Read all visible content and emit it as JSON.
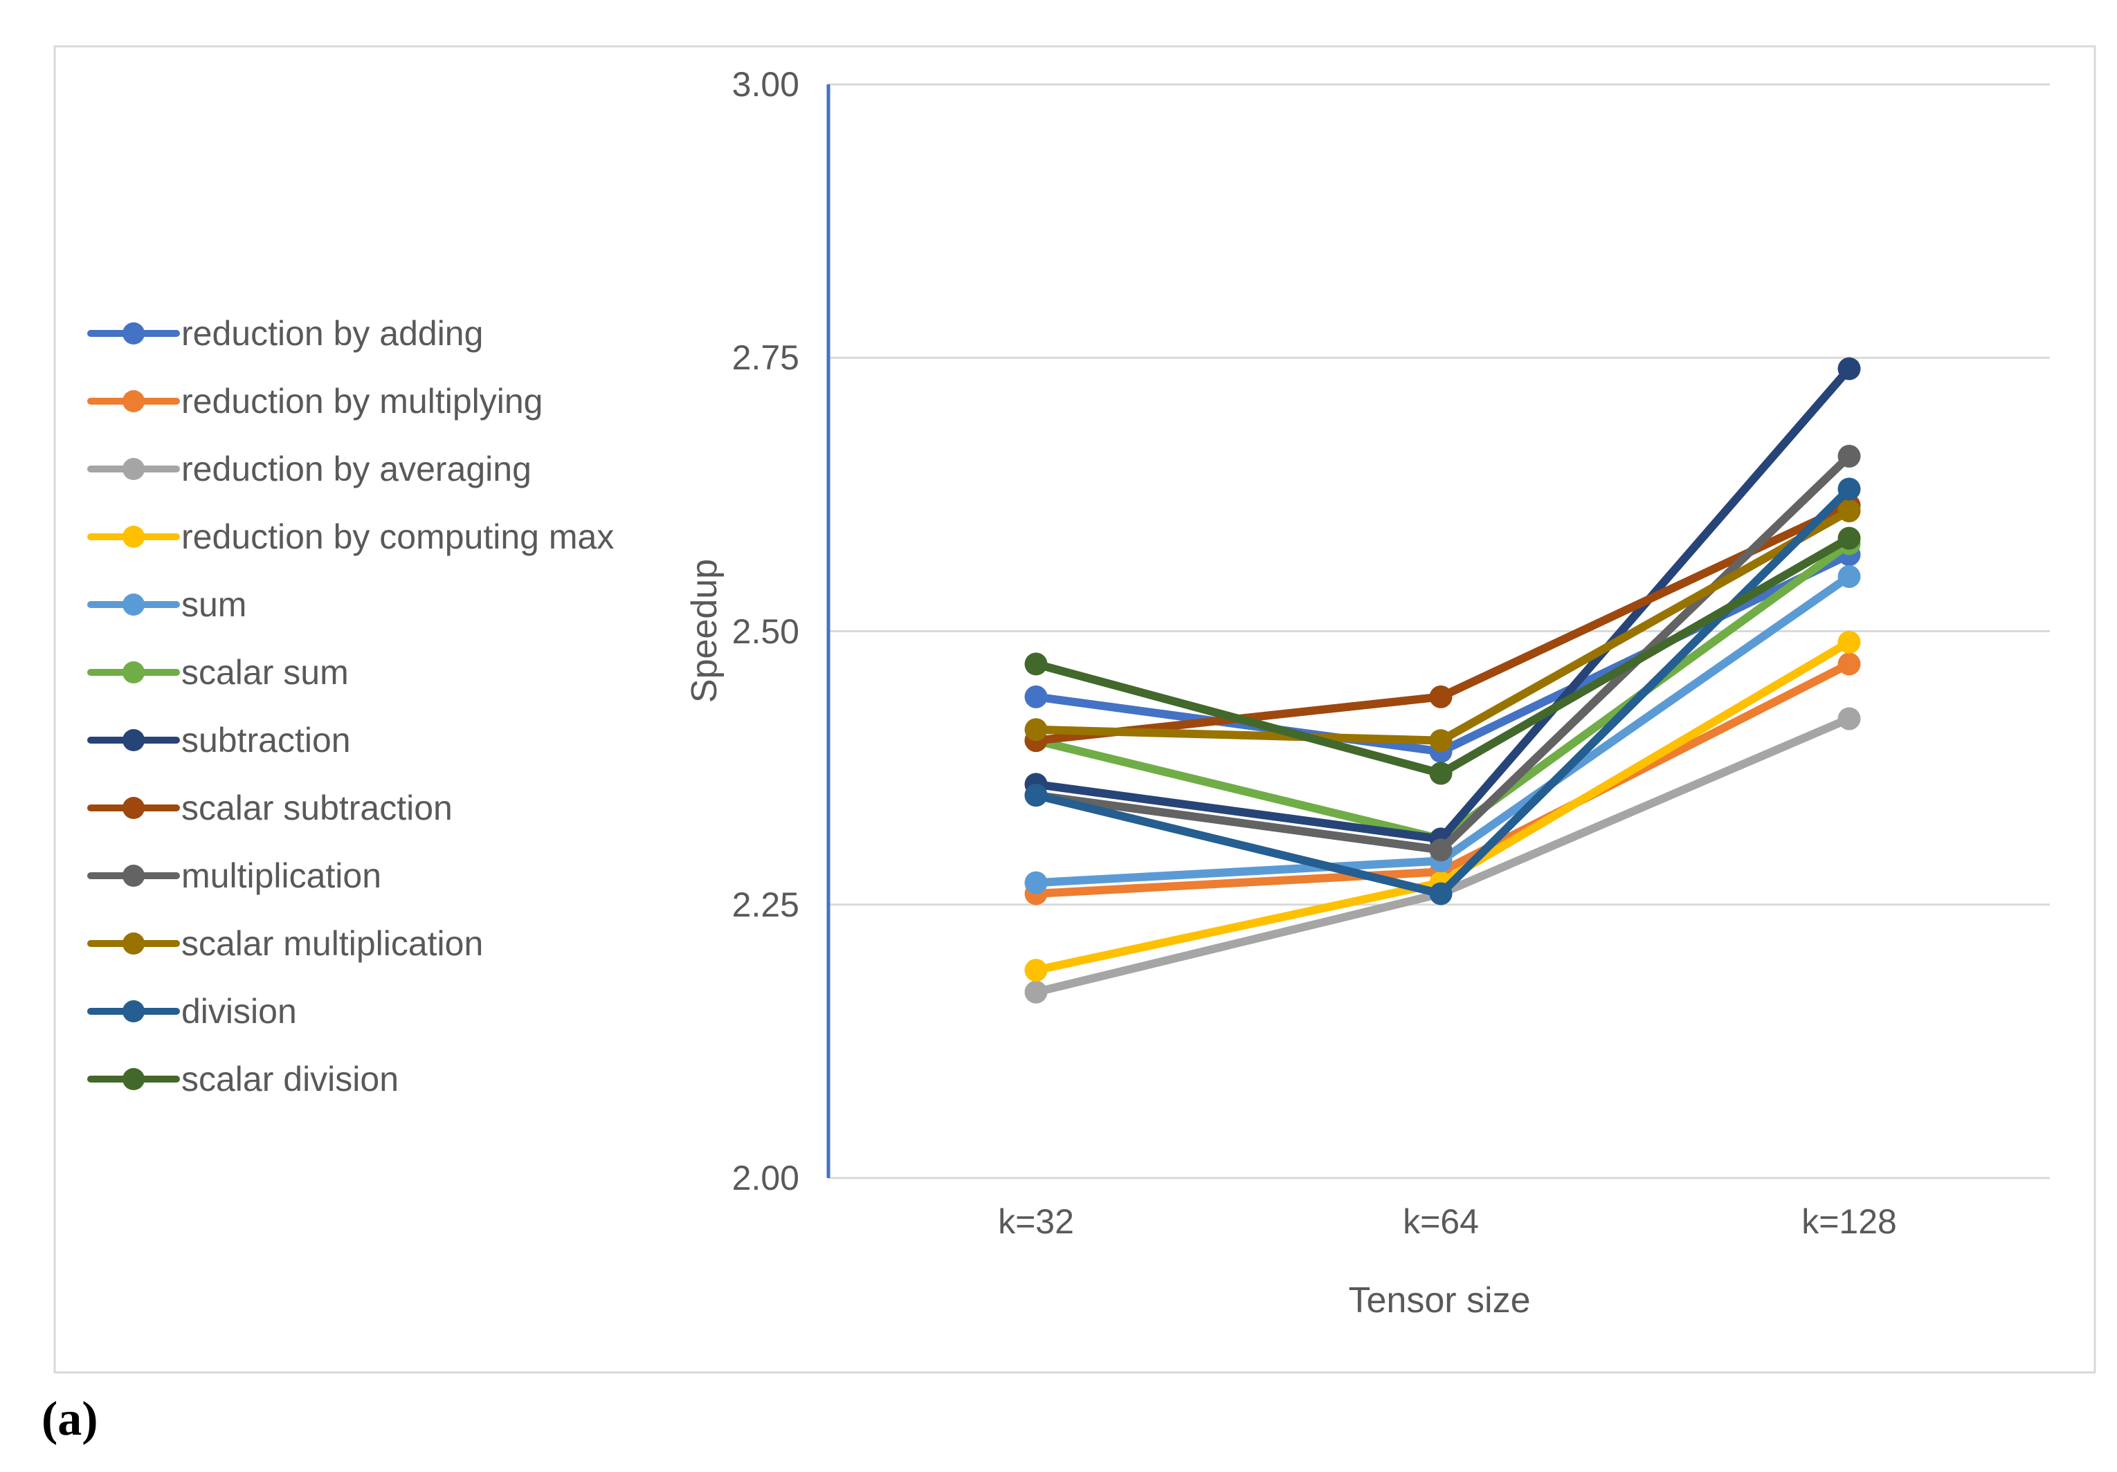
{
  "figure": {
    "caption": "(a)"
  },
  "chart_data": {
    "type": "line",
    "title": "",
    "xlabel": "Tensor size",
    "ylabel": "Speedup",
    "categories": [
      "k=32",
      "k=64",
      "k=128"
    ],
    "y_ticks": [
      "3.00",
      "2.75",
      "2.50",
      "2.25",
      "2.00"
    ],
    "y_tick_values": [
      3.0,
      2.75,
      2.5,
      2.25,
      2.0
    ],
    "ylim": [
      2.0,
      3.0
    ],
    "grid": true,
    "legend_position": "left",
    "axis_color": "#4472C4",
    "gridline_color": "#D9D9D9",
    "border_color": "#D9D9D9",
    "text_color": "#595959",
    "series": [
      {
        "name": "reduction by adding",
        "color": "#4472C4",
        "values": [
          2.44,
          2.39,
          2.57
        ]
      },
      {
        "name": "reduction by multiplying",
        "color": "#ED7D31",
        "values": [
          2.26,
          2.28,
          2.47
        ]
      },
      {
        "name": "reduction by averaging",
        "color": "#A5A5A5",
        "values": [
          2.17,
          2.26,
          2.42
        ]
      },
      {
        "name": "reduction by computing max",
        "color": "#FFC000",
        "values": [
          2.19,
          2.27,
          2.49
        ]
      },
      {
        "name": "sum",
        "color": "#5B9BD5",
        "values": [
          2.27,
          2.29,
          2.55
        ]
      },
      {
        "name": "scalar sum",
        "color": "#70AD47",
        "values": [
          2.4,
          2.31,
          2.58
        ]
      },
      {
        "name": "subtraction",
        "color": "#264478",
        "values": [
          2.36,
          2.31,
          2.74
        ]
      },
      {
        "name": "scalar subtraction",
        "color": "#9E480E",
        "values": [
          2.4,
          2.44,
          2.615
        ]
      },
      {
        "name": "multiplication",
        "color": "#636363",
        "values": [
          2.35,
          2.3,
          2.66
        ]
      },
      {
        "name": "scalar multiplication",
        "color": "#997300",
        "values": [
          2.41,
          2.4,
          2.61
        ]
      },
      {
        "name": "division",
        "color": "#255E91",
        "values": [
          2.35,
          2.26,
          2.63
        ]
      },
      {
        "name": "scalar division",
        "color": "#43682B",
        "values": [
          2.47,
          2.37,
          2.585
        ]
      }
    ]
  }
}
